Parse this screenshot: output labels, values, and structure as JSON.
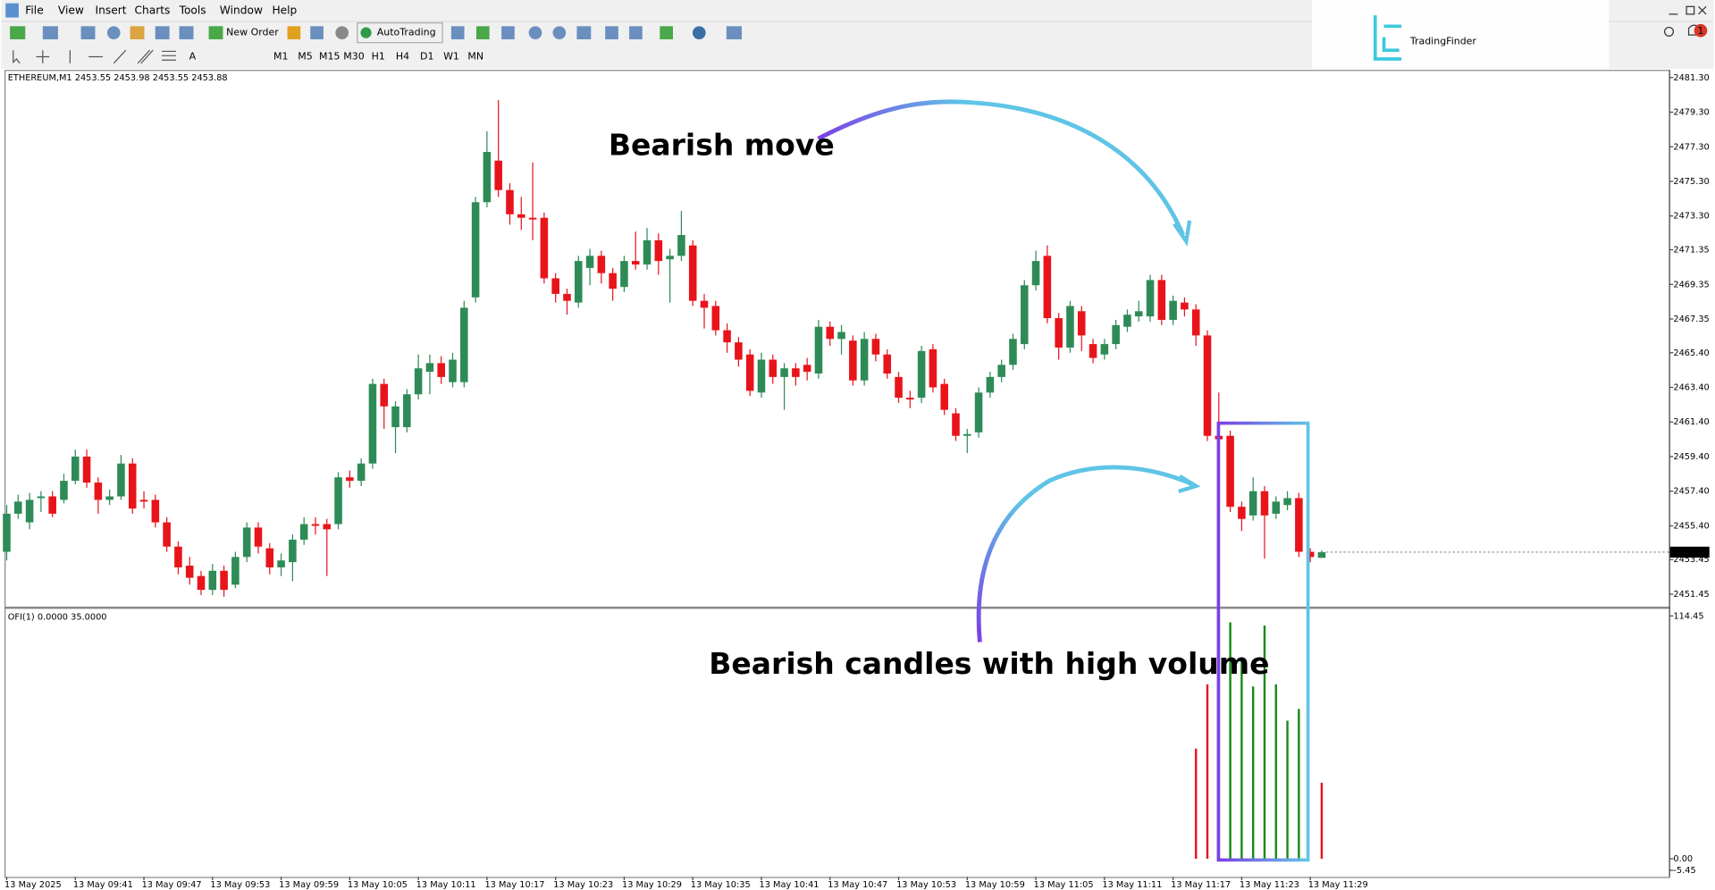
{
  "menu": [
    "File",
    "View",
    "Insert",
    "Charts",
    "Tools",
    "Window",
    "Help"
  ],
  "toolbar": {
    "new_order": "New Order",
    "autotrading": "AutoTrading",
    "timeframes": [
      "M1",
      "M5",
      "M15",
      "M30",
      "H1",
      "H4",
      "D1",
      "W1",
      "MN"
    ]
  },
  "logo": "TradingFinder",
  "notification_count": "1",
  "chart_data": [
    {
      "type": "candlestick",
      "symbol": "ETHEREUM,M1",
      "annotations": [
        "Bearish move",
        "Bearish candles with high volume"
      ],
      "up_color": "#2e8b57",
      "down_color": "#e8141a",
      "categories": [
        "13 May 2025",
        null,
        null,
        null,
        null,
        null,
        "13 May 09:41",
        null,
        null,
        null,
        null,
        null,
        "13 May 09:47",
        null,
        null,
        null,
        null,
        null,
        "13 May 09:53",
        null,
        null,
        null,
        null,
        null,
        "13 May 09:59",
        null,
        null,
        null,
        null,
        null,
        "13 May 10:05",
        null,
        null,
        null,
        null,
        null,
        "13 May 10:11",
        null,
        null,
        null,
        null,
        null,
        "13 May 10:17",
        null,
        null,
        null,
        null,
        null,
        "13 May 10:23",
        null,
        null,
        null,
        null,
        null,
        "13 May 10:29",
        null,
        null,
        null,
        null,
        null,
        "13 May 10:35",
        null,
        null,
        null,
        null,
        null,
        "13 May 10:41",
        null,
        null,
        null,
        null,
        null,
        "13 May 10:47",
        null,
        null,
        null,
        null,
        null,
        "13 May 10:53",
        null,
        null,
        null,
        null,
        null,
        "13 May 10:59",
        null,
        null,
        null,
        null,
        null,
        "13 May 11:05",
        null,
        null,
        null,
        null,
        null,
        "13 May 11:11",
        null,
        null,
        null,
        null,
        null,
        "13 May 11:17",
        null,
        null,
        null,
        null,
        null,
        "13 May 11:23",
        null,
        null,
        null,
        null,
        null,
        "13 May 11:29",
        null
      ],
      "open": [
        2453.9,
        2456.1,
        2455.6,
        2457.0,
        2457.1,
        2456.9,
        2458.0,
        2459.4,
        2457.9,
        2456.9,
        2457.1,
        2459.0,
        2456.9,
        2456.9,
        2455.6,
        2454.2,
        2453.1,
        2452.5,
        2451.7,
        2452.8,
        2452.0,
        2453.6,
        2455.3,
        2454.1,
        2453.0,
        2453.3,
        2454.6,
        2455.5,
        2455.5,
        2455.5,
        2458.2,
        2458.0,
        2459.0,
        2463.6,
        2461.1,
        2461.1,
        2463.0,
        2464.3,
        2464.8,
        2463.7,
        2463.7,
        2468.6,
        2474.1,
        2476.5,
        2474.8,
        2473.4,
        2473.2,
        2473.2,
        2469.7,
        2468.8,
        2468.3,
        2470.3,
        2471.0,
        2470.0,
        2469.2,
        2470.7,
        2470.5,
        2471.9,
        2470.8,
        2471.0,
        2471.6,
        2468.4,
        2468.1,
        2466.7,
        2466.0,
        2465.3,
        2463.1,
        2465.0,
        2464.0,
        2464.5,
        2464.7,
        2464.2,
        2466.9,
        2466.2,
        2466.1,
        2463.8,
        2466.2,
        2465.3,
        2464.0,
        2462.8,
        2462.8,
        2465.6,
        2463.6,
        2461.9,
        2460.6,
        2460.8,
        2463.1,
        2464.0,
        2464.7,
        2465.9,
        2469.3,
        2471.0,
        2467.4,
        2465.7,
        2467.8,
        2465.9,
        2465.3,
        2465.9,
        2466.9,
        2467.5,
        2467.5,
        2469.6,
        2467.3,
        2468.3,
        2467.9,
        2466.4,
        2460.6,
        2460.6,
        2456.5,
        2456.0,
        2457.4,
        2456.1,
        2456.6,
        2457.0,
        2453.9,
        2453.55
      ],
      "high": [
        2456.6,
        2457.2,
        2457.3,
        2457.4,
        2457.4,
        2458.4,
        2459.8,
        2459.8,
        2458.2,
        2457.5,
        2459.5,
        2459.3,
        2457.4,
        2457.2,
        2455.9,
        2454.5,
        2453.6,
        2452.8,
        2453.2,
        2453.1,
        2453.9,
        2455.6,
        2455.6,
        2454.4,
        2453.8,
        2454.9,
        2455.9,
        2455.9,
        2455.8,
        2458.5,
        2458.6,
        2459.3,
        2463.9,
        2463.9,
        2462.6,
        2463.3,
        2465.3,
        2465.3,
        2465.2,
        2465.4,
        2468.4,
        2474.4,
        2478.2,
        2480.0,
        2475.2,
        2474.4,
        2476.4,
        2473.5,
        2470.0,
        2469.1,
        2471.0,
        2471.4,
        2471.3,
        2470.3,
        2471.0,
        2472.4,
        2472.6,
        2472.3,
        2471.4,
        2473.6,
        2471.9,
        2468.8,
        2468.4,
        2467.1,
        2466.3,
        2465.6,
        2465.4,
        2465.3,
        2464.8,
        2464.8,
        2465.1,
        2467.3,
        2467.2,
        2467.0,
        2466.4,
        2466.6,
        2466.5,
        2465.6,
        2464.3,
        2463.2,
        2465.8,
        2465.9,
        2463.9,
        2462.2,
        2461.0,
        2463.4,
        2464.3,
        2465.0,
        2466.5,
        2469.6,
        2471.3,
        2471.6,
        2467.7,
        2468.4,
        2468.1,
        2466.2,
        2466.2,
        2467.3,
        2467.9,
        2468.4,
        2469.9,
        2469.9,
        2468.7,
        2468.6,
        2468.2,
        2466.7,
        2463.1,
        2460.9,
        2456.8,
        2458.2,
        2457.7,
        2457.1,
        2457.4,
        2457.3,
        2454.1,
        2453.98
      ],
      "low": [
        2453.4,
        2455.8,
        2455.2,
        2456.2,
        2455.9,
        2456.7,
        2457.8,
        2457.6,
        2456.1,
        2456.6,
        2456.9,
        2456.1,
        2456.4,
        2455.3,
        2453.9,
        2452.6,
        2452.0,
        2451.4,
        2451.4,
        2451.3,
        2451.8,
        2453.3,
        2453.8,
        2452.6,
        2452.5,
        2452.2,
        2454.3,
        2454.9,
        2452.5,
        2455.2,
        2457.6,
        2457.7,
        2458.7,
        2461.0,
        2459.6,
        2460.8,
        2462.7,
        2463.0,
        2463.6,
        2463.4,
        2463.4,
        2468.3,
        2473.8,
        2474.4,
        2472.8,
        2472.5,
        2471.9,
        2469.4,
        2468.3,
        2467.6,
        2468.0,
        2469.3,
        2469.4,
        2468.4,
        2468.9,
        2470.2,
        2470.2,
        2469.9,
        2468.3,
        2470.7,
        2468.1,
        2466.8,
        2466.4,
        2465.4,
        2464.6,
        2462.9,
        2462.8,
        2463.6,
        2462.1,
        2463.5,
        2463.8,
        2463.9,
        2465.8,
        2465.3,
        2463.5,
        2463.5,
        2464.9,
        2463.9,
        2462.5,
        2462.2,
        2462.5,
        2463.1,
        2461.8,
        2460.3,
        2459.6,
        2460.5,
        2462.8,
        2463.7,
        2464.4,
        2465.6,
        2469.0,
        2467.1,
        2465.0,
        2465.4,
        2465.5,
        2464.8,
        2465.0,
        2465.6,
        2466.6,
        2467.2,
        2467.2,
        2467.0,
        2467.0,
        2467.5,
        2465.8,
        2460.3,
        2460.1,
        2456.2,
        2455.1,
        2455.7,
        2453.5,
        2455.8,
        2456.3,
        2453.6,
        2453.3,
        2453.55
      ],
      "close": [
        2456.1,
        2456.8,
        2456.9,
        2457.1,
        2456.1,
        2458.0,
        2459.4,
        2457.9,
        2456.9,
        2457.1,
        2459.0,
        2456.4,
        2456.8,
        2455.6,
        2454.2,
        2453.0,
        2452.4,
        2451.7,
        2452.8,
        2451.7,
        2453.6,
        2455.3,
        2454.2,
        2453.0,
        2453.4,
        2454.6,
        2455.5,
        2455.4,
        2455.2,
        2458.2,
        2458.0,
        2459.0,
        2463.6,
        2462.3,
        2462.3,
        2463.0,
        2464.5,
        2464.8,
        2464.0,
        2465.0,
        2468.0,
        2474.1,
        2477.0,
        2474.8,
        2473.4,
        2473.2,
        2473.1,
        2469.7,
        2468.8,
        2468.4,
        2470.7,
        2471.0,
        2470.0,
        2469.1,
        2470.7,
        2470.5,
        2471.9,
        2470.7,
        2471.0,
        2472.2,
        2468.4,
        2468.0,
        2466.7,
        2466.0,
        2465.0,
        2463.2,
        2465.0,
        2464.0,
        2464.5,
        2464.0,
        2464.3,
        2466.9,
        2466.2,
        2466.6,
        2463.8,
        2466.2,
        2465.3,
        2464.2,
        2462.8,
        2462.7,
        2465.5,
        2463.4,
        2462.1,
        2460.6,
        2460.7,
        2463.1,
        2464.0,
        2464.7,
        2466.2,
        2469.3,
        2470.7,
        2467.4,
        2465.7,
        2468.1,
        2466.4,
        2465.1,
        2465.9,
        2467.0,
        2467.6,
        2467.8,
        2469.6,
        2467.3,
        2468.4,
        2467.9,
        2466.4,
        2460.6,
        2460.4,
        2456.5,
        2455.8,
        2457.4,
        2456.0,
        2456.8,
        2457.0,
        2453.9,
        2453.6,
        2453.88
      ],
      "ylim": [
        2450.7,
        2481.68
      ],
      "yticks": [
        {
          "value": 2481.3,
          "label": "2481.30"
        },
        {
          "value": 2479.3,
          "label": "2479.30"
        },
        {
          "value": 2477.3,
          "label": "2477.30"
        },
        {
          "value": 2475.3,
          "label": "2475.30"
        },
        {
          "value": 2473.3,
          "label": "2473.30"
        },
        2471.35,
        2469.35,
        2467.35,
        {
          "value": 2465.4,
          "label": "2465.40"
        },
        {
          "value": 2463.4,
          "label": "2463.40"
        },
        {
          "value": 2461.4,
          "label": "2461.40"
        },
        {
          "value": 2459.4,
          "label": "2459.40"
        },
        {
          "value": 2457.4,
          "label": "2457.40"
        },
        {
          "value": 2455.4,
          "label": "2455.40"
        },
        2453.45,
        2451.45
      ],
      "grid": false
    },
    {
      "type": "bar",
      "title": "OFI(1) 0.0000 35.0000",
      "series": [
        {
          "color": "#e8141a",
          "values": [
            null,
            null,
            null,
            null,
            null,
            null,
            null,
            null,
            null,
            null,
            null,
            null,
            null,
            null,
            null,
            null,
            null,
            null,
            null,
            null,
            null,
            null,
            null,
            null,
            null,
            null,
            null,
            null,
            null,
            null,
            null,
            null,
            null,
            null,
            null,
            null,
            null,
            null,
            null,
            null,
            null,
            null,
            null,
            null,
            null,
            null,
            null,
            null,
            null,
            null,
            null,
            null,
            null,
            null,
            null,
            null,
            null,
            null,
            null,
            null,
            null,
            null,
            null,
            null,
            null,
            null,
            null,
            null,
            null,
            null,
            null,
            null,
            null,
            null,
            null,
            null,
            null,
            null,
            null,
            null,
            null,
            null,
            null,
            null,
            null,
            null,
            null,
            null,
            null,
            null,
            null,
            null,
            null,
            null,
            null,
            null,
            null,
            null,
            null,
            null,
            null,
            null,
            null,
            null,
            51.9,
            82.2,
            97.3,
            null,
            null,
            null,
            null,
            null,
            null,
            null,
            null,
            35.8
          ]
        },
        {
          "color": "#1a8a1a",
          "values": [
            null,
            null,
            null,
            null,
            null,
            null,
            null,
            null,
            null,
            null,
            null,
            null,
            null,
            null,
            null,
            null,
            null,
            null,
            null,
            null,
            null,
            null,
            null,
            null,
            null,
            null,
            null,
            null,
            null,
            null,
            null,
            null,
            null,
            null,
            null,
            null,
            null,
            null,
            null,
            null,
            null,
            null,
            null,
            null,
            null,
            null,
            null,
            null,
            null,
            null,
            null,
            null,
            null,
            null,
            null,
            null,
            null,
            null,
            null,
            null,
            null,
            null,
            null,
            null,
            null,
            null,
            null,
            null,
            null,
            null,
            null,
            null,
            null,
            null,
            null,
            null,
            null,
            null,
            null,
            null,
            null,
            null,
            null,
            null,
            null,
            null,
            null,
            null,
            null,
            null,
            null,
            null,
            null,
            null,
            null,
            null,
            null,
            null,
            null,
            null,
            null,
            null,
            null,
            null,
            null,
            null,
            null,
            111.4,
            93.8,
            81.2,
            109.9,
            82.2,
            65.1,
            70.6,
            null,
            null
          ]
        }
      ],
      "ylim": [
        -5.45,
        114.45
      ],
      "yticks": [
        114.45,
        {
          "value": 0,
          "label": "0.00"
        },
        -5.45
      ]
    }
  ]
}
